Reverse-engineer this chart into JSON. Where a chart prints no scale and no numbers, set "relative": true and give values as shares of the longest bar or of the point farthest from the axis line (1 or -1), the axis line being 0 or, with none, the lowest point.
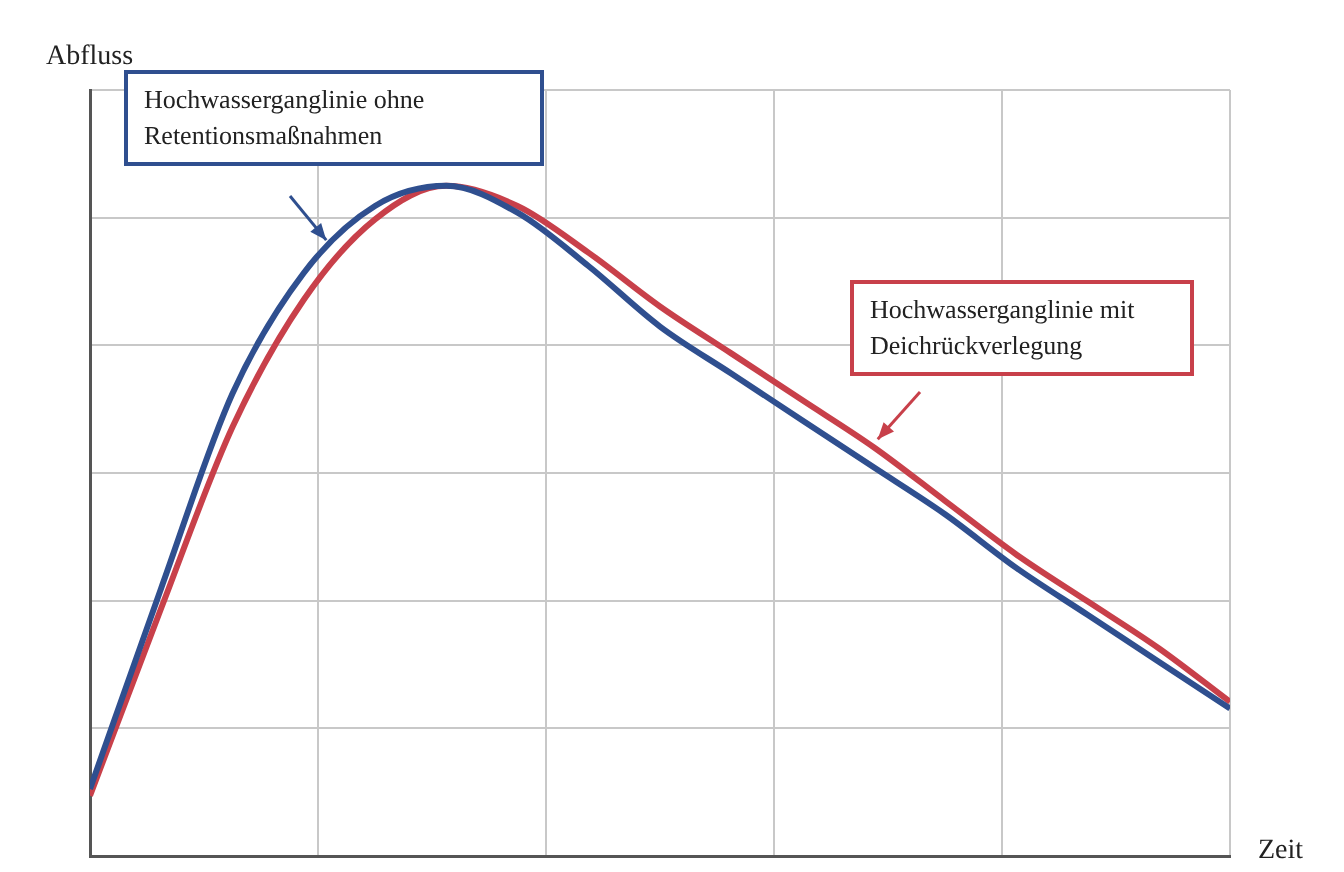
{
  "chart_data": {
    "type": "line",
    "relative": true,
    "grid": true,
    "xlabel": "Zeit",
    "ylabel": "Abfluss",
    "categories": [
      null,
      null,
      null,
      null,
      null,
      null,
      null,
      null,
      null,
      null,
      null,
      null,
      null,
      null,
      null,
      null,
      null
    ],
    "series": [
      {
        "name": "Hochwasserganglinie ohne Retentionsmaßnahmen",
        "color": "#2f4f8f",
        "values": [
          0.1,
          0.4,
          0.69,
          0.87,
          0.97,
          1.0,
          0.96,
          0.88,
          0.79,
          0.72,
          0.65,
          0.58,
          0.51,
          0.43,
          0.36,
          0.29,
          0.22
        ]
      },
      {
        "name": "Hochwasserganglinie mit Deichrückverlegung",
        "color": "#c8404a",
        "values": [
          0.09,
          0.37,
          0.64,
          0.83,
          0.95,
          1.0,
          0.97,
          0.9,
          0.82,
          0.75,
          0.68,
          0.61,
          0.53,
          0.45,
          0.38,
          0.31,
          0.23
        ]
      }
    ]
  }
}
